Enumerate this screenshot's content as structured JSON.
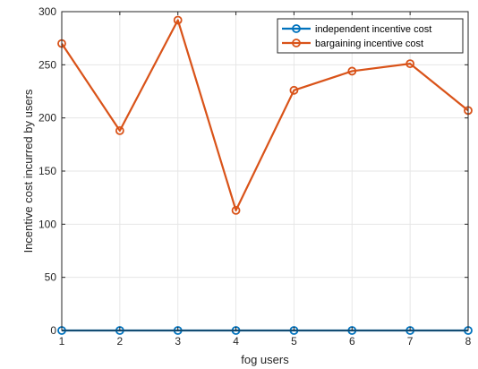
{
  "chart_data": {
    "type": "line",
    "xlabel": "fog users",
    "ylabel": "Incentive cost incurred by users",
    "x": [
      1,
      2,
      3,
      4,
      5,
      6,
      7,
      8
    ],
    "xlim": [
      1,
      8
    ],
    "ylim": [
      0,
      300
    ],
    "xticks": [
      1,
      2,
      3,
      4,
      5,
      6,
      7,
      8
    ],
    "yticks": [
      0,
      50,
      100,
      150,
      200,
      250,
      300
    ],
    "grid": true,
    "legend_position": "top-right",
    "marker": "circle",
    "series": [
      {
        "name": "independent incentive cost",
        "color": "#0072BD",
        "values": [
          0,
          0,
          0,
          0,
          0,
          0,
          0,
          0
        ]
      },
      {
        "name": "bargaining incentive cost",
        "color": "#D95319",
        "values": [
          270,
          188,
          292,
          113,
          226,
          244,
          251,
          207
        ]
      }
    ]
  }
}
